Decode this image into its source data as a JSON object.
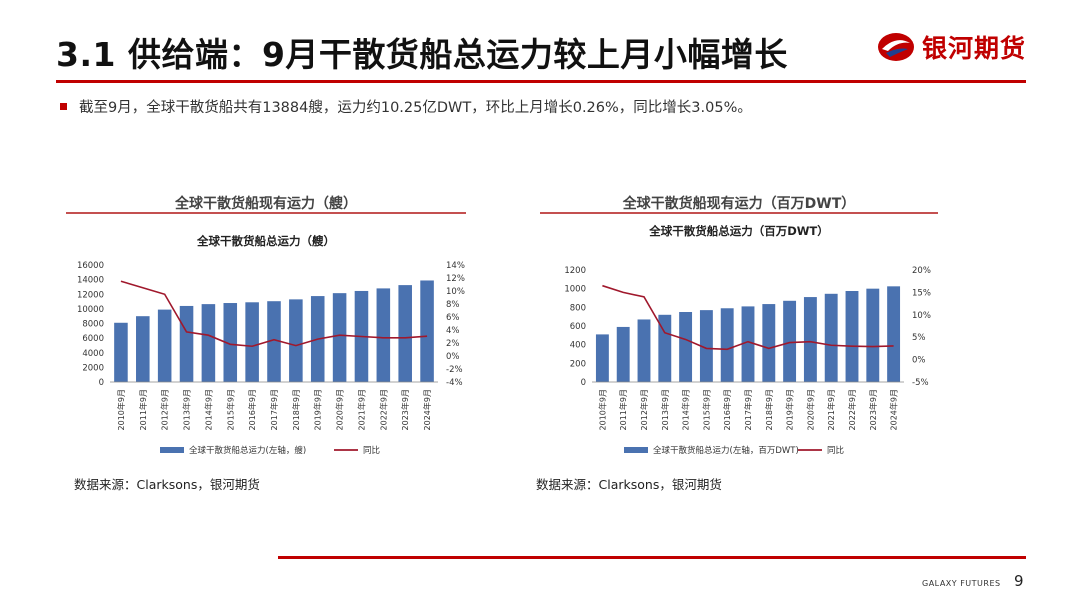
{
  "header": {
    "title": "3.1 供给端：9月干散货船总运力较上月小幅增长",
    "logo_text": "银河期货"
  },
  "summary": {
    "bullet": "截至9月，全球干散货船共有13884艘，运力约10.25亿DWT，环比上月增长0.26%，同比增长3.05%。"
  },
  "colors": {
    "accent": "#c00000",
    "bar": "#4a72b0",
    "line": "#a0182c"
  },
  "chart_data": [
    {
      "type": "bar",
      "panel_title": "全球干散货船现有运力（艘）",
      "title": "全球干散货船总运力（艘）",
      "source": "数据来源：Clarksons，银河期货",
      "categories": [
        "2010年9月",
        "2011年9月",
        "2012年9月",
        "2013年9月",
        "2014年9月",
        "2015年9月",
        "2016年9月",
        "2017年9月",
        "2018年9月",
        "2019年9月",
        "2020年9月",
        "2021年9月",
        "2022年9月",
        "2023年9月",
        "2024年9月"
      ],
      "series": [
        {
          "name": "全球干散货船总运力(左轴，艘)",
          "type": "bar",
          "axis": "left",
          "values": [
            8100,
            9000,
            9900,
            10400,
            10650,
            10800,
            10900,
            11050,
            11300,
            11750,
            12150,
            12450,
            12800,
            13250,
            13884
          ]
        },
        {
          "name": "同比",
          "type": "line",
          "axis": "right",
          "values": [
            11.5,
            10.5,
            9.5,
            3.7,
            3.2,
            1.8,
            1.5,
            2.5,
            1.6,
            2.6,
            3.2,
            3.0,
            2.8,
            2.8,
            3.05
          ]
        }
      ],
      "ylim_left": [
        0,
        16000
      ],
      "yticks_left": [
        "0",
        "2000",
        "4000",
        "6000",
        "8000",
        "10000",
        "12000",
        "14000",
        "16000"
      ],
      "ylim_right": [
        -4,
        14
      ],
      "yticks_right": [
        "-4%",
        "-2%",
        "0%",
        "2%",
        "4%",
        "6%",
        "8%",
        "10%",
        "12%",
        "14%"
      ],
      "legend_position": "bottom"
    },
    {
      "type": "bar",
      "panel_title": "全球干散货船现有运力（百万DWT）",
      "title": "全球干散货船总运力（百万DWT）",
      "source": "数据来源：Clarksons，银河期货",
      "categories": [
        "2010年9月",
        "2011年9月",
        "2012年9月",
        "2013年9月",
        "2014年9月",
        "2015年9月",
        "2016年9月",
        "2017年9月",
        "2018年9月",
        "2019年9月",
        "2020年9月",
        "2021年9月",
        "2022年9月",
        "2023年9月",
        "2024年9月"
      ],
      "series": [
        {
          "name": "全球干散货船总运力(左轴，百万DWT)",
          "type": "bar",
          "axis": "left",
          "values": [
            510,
            590,
            670,
            720,
            750,
            770,
            790,
            810,
            835,
            870,
            910,
            945,
            975,
            1000,
            1025
          ]
        },
        {
          "name": "同比",
          "type": "line",
          "axis": "right",
          "values": [
            16.5,
            15,
            14,
            6,
            4.5,
            2.5,
            2.3,
            4,
            2.5,
            3.8,
            4,
            3.2,
            3,
            2.9,
            3.05
          ]
        }
      ],
      "ylim_left": [
        0,
        1200
      ],
      "yticks_left": [
        "0",
        "200",
        "400",
        "600",
        "800",
        "1000",
        "1200"
      ],
      "ylim_right": [
        -5,
        20
      ],
      "yticks_right": [
        "-5%",
        "0%",
        "5%",
        "10%",
        "15%",
        "20%"
      ],
      "legend_position": "bottom"
    }
  ],
  "footer": {
    "brand": "GALAXY FUTURES",
    "page_number": "9"
  }
}
